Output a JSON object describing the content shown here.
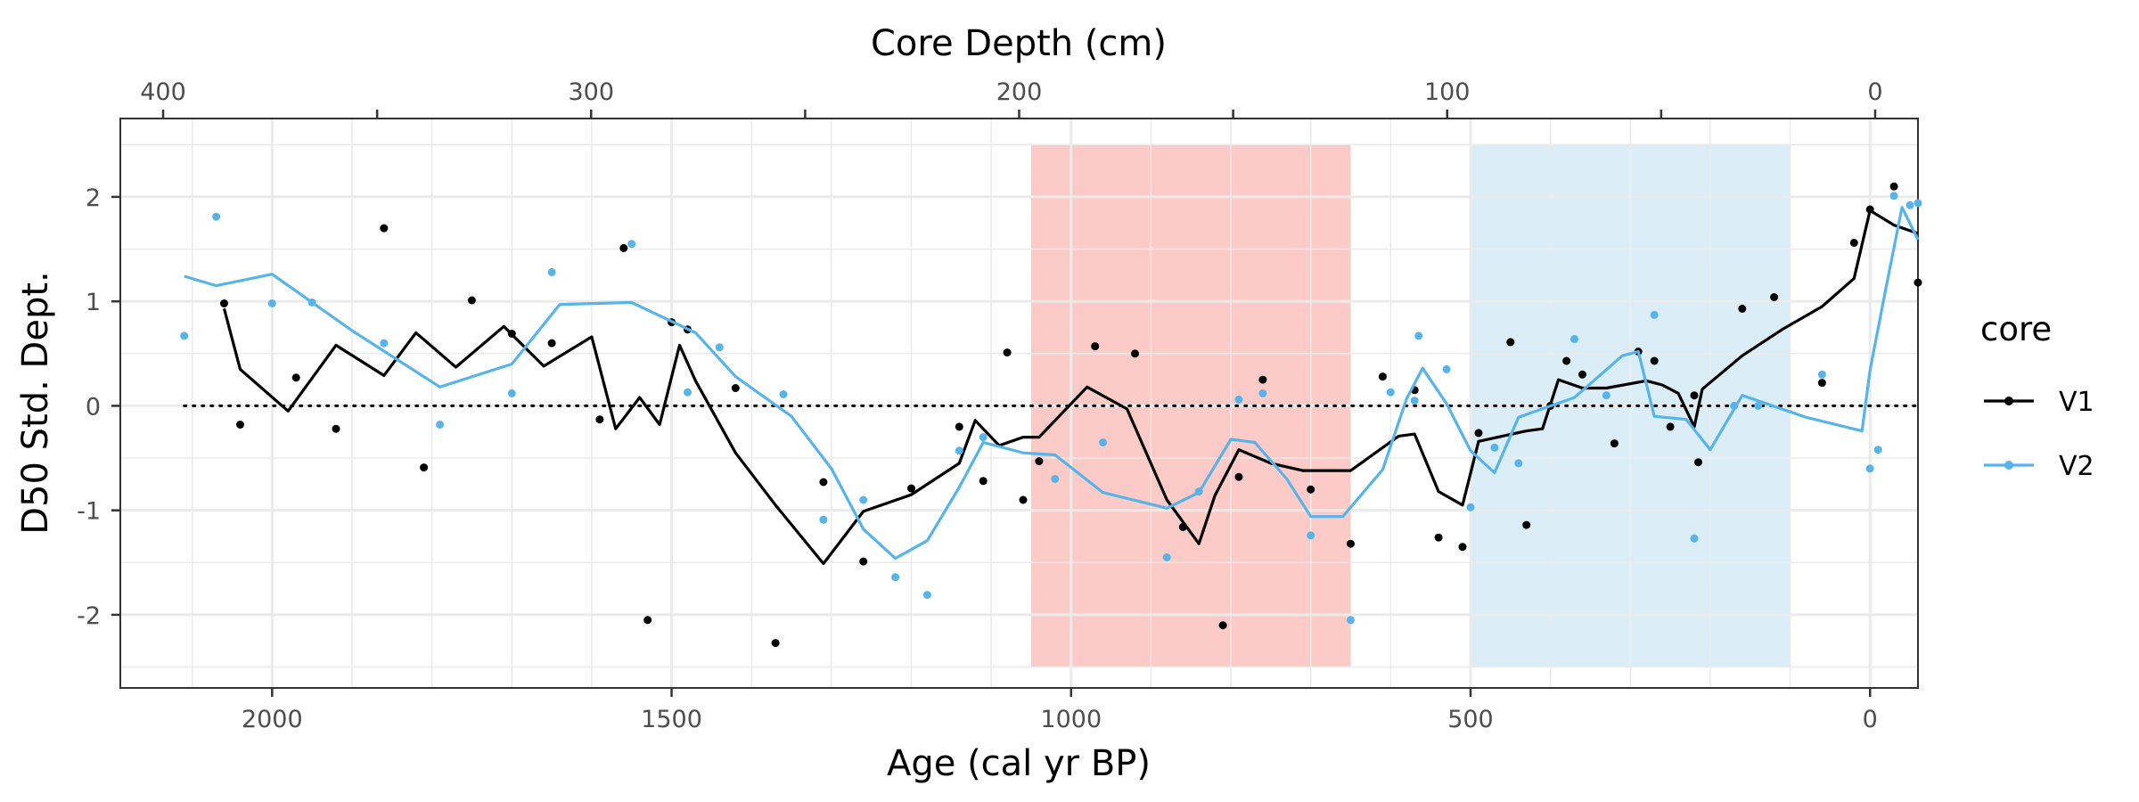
{
  "chart_data": {
    "type": "scatter",
    "xlabel": "Age (cal yr BP)",
    "ylabel": "D50 Std. Dept.",
    "secondary_xlabel": "Core Depth (cm)",
    "x_reversed": true,
    "xlim": [
      2190,
      -60
    ],
    "ylim": [
      -2.7,
      2.75
    ],
    "x_ticks": [
      2000,
      1500,
      1000,
      500,
      0
    ],
    "x_tick_labels": [
      "2000",
      "1500",
      "1000",
      "500",
      "0"
    ],
    "y_ticks": [
      -2,
      -1,
      0,
      1,
      2
    ],
    "y_tick_labels": [
      "-2",
      "-1",
      "0",
      "1",
      "2"
    ],
    "depth_ticks": [
      400,
      300,
      200,
      100,
      0
    ],
    "depth_tick_labels": [
      "400",
      "300",
      "200",
      "100",
      "0"
    ],
    "depth_xlim": [
      410,
      -10
    ],
    "grid": true,
    "reference_line": {
      "y": 0,
      "style": "dotted",
      "x_from": 2110,
      "x_to": -60
    },
    "shaded_regions": [
      {
        "x_from": 1050,
        "x_to": 650,
        "y_from": -2.5,
        "y_to": 2.5,
        "color": "#f8766d",
        "opacity": 0.38
      },
      {
        "x_from": 500,
        "x_to": 100,
        "y_from": -2.5,
        "y_to": 2.5,
        "color": "#a6d2e8",
        "opacity": 0.4
      }
    ],
    "legend": {
      "title": "core",
      "position": "right"
    },
    "series": [
      {
        "name": "V1",
        "color": "#000000",
        "points": [
          [
            2060,
            0.98
          ],
          [
            2040,
            -0.18
          ],
          [
            1970,
            0.27
          ],
          [
            1920,
            -0.22
          ],
          [
            1860,
            1.7
          ],
          [
            1810,
            -0.59
          ],
          [
            1750,
            1.01
          ],
          [
            1700,
            0.69
          ],
          [
            1650,
            0.6
          ],
          [
            1590,
            -0.13
          ],
          [
            1560,
            1.51
          ],
          [
            1530,
            -2.05
          ],
          [
            1500,
            0.8
          ],
          [
            1480,
            0.73
          ],
          [
            1420,
            0.17
          ],
          [
            1370,
            -2.27
          ],
          [
            1310,
            -0.73
          ],
          [
            1260,
            -1.49
          ],
          [
            1200,
            -0.79
          ],
          [
            1140,
            -0.2
          ],
          [
            1110,
            -0.72
          ],
          [
            1080,
            0.51
          ],
          [
            1060,
            -0.9
          ],
          [
            1040,
            -0.53
          ],
          [
            970,
            0.57
          ],
          [
            920,
            0.5
          ],
          [
            860,
            -1.16
          ],
          [
            810,
            -2.1
          ],
          [
            790,
            -0.68
          ],
          [
            760,
            0.25
          ],
          [
            700,
            -0.8
          ],
          [
            650,
            -1.32
          ],
          [
            610,
            0.28
          ],
          [
            570,
            0.15
          ],
          [
            540,
            -1.26
          ],
          [
            510,
            -1.35
          ],
          [
            490,
            -0.26
          ],
          [
            450,
            0.61
          ],
          [
            430,
            -1.14
          ],
          [
            400,
            0.0
          ],
          [
            380,
            0.43
          ],
          [
            360,
            0.3
          ],
          [
            320,
            -0.36
          ],
          [
            290,
            0.52
          ],
          [
            270,
            0.43
          ],
          [
            250,
            -0.2
          ],
          [
            220,
            0.1
          ],
          [
            215,
            -0.54
          ],
          [
            160,
            0.93
          ],
          [
            120,
            1.04
          ],
          [
            60,
            0.22
          ],
          [
            20,
            1.56
          ],
          [
            0,
            1.88
          ],
          [
            -30,
            2.1
          ],
          [
            -60,
            1.18
          ]
        ],
        "line": [
          [
            2060,
            0.93
          ],
          [
            2040,
            0.35
          ],
          [
            1980,
            -0.05
          ],
          [
            1920,
            0.58
          ],
          [
            1860,
            0.29
          ],
          [
            1820,
            0.7
          ],
          [
            1770,
            0.37
          ],
          [
            1710,
            0.76
          ],
          [
            1660,
            0.38
          ],
          [
            1600,
            0.66
          ],
          [
            1570,
            -0.22
          ],
          [
            1540,
            0.08
          ],
          [
            1515,
            -0.18
          ],
          [
            1490,
            0.58
          ],
          [
            1470,
            0.24
          ],
          [
            1420,
            -0.45
          ],
          [
            1370,
            -0.95
          ],
          [
            1310,
            -1.51
          ],
          [
            1260,
            -1.01
          ],
          [
            1200,
            -0.85
          ],
          [
            1140,
            -0.55
          ],
          [
            1120,
            -0.14
          ],
          [
            1090,
            -0.38
          ],
          [
            1060,
            -0.3
          ],
          [
            1040,
            -0.3
          ],
          [
            980,
            0.18
          ],
          [
            930,
            -0.03
          ],
          [
            880,
            -0.9
          ],
          [
            840,
            -1.32
          ],
          [
            820,
            -0.86
          ],
          [
            790,
            -0.42
          ],
          [
            750,
            -0.55
          ],
          [
            710,
            -0.62
          ],
          [
            650,
            -0.62
          ],
          [
            590,
            -0.29
          ],
          [
            570,
            -0.27
          ],
          [
            540,
            -0.82
          ],
          [
            510,
            -0.95
          ],
          [
            490,
            -0.34
          ],
          [
            460,
            -0.29
          ],
          [
            430,
            -0.24
          ],
          [
            410,
            -0.22
          ],
          [
            390,
            0.25
          ],
          [
            360,
            0.17
          ],
          [
            330,
            0.17
          ],
          [
            280,
            0.24
          ],
          [
            260,
            0.2
          ],
          [
            240,
            0.12
          ],
          [
            220,
            -0.2
          ],
          [
            210,
            0.16
          ],
          [
            160,
            0.48
          ],
          [
            110,
            0.73
          ],
          [
            60,
            0.95
          ],
          [
            20,
            1.22
          ],
          [
            0,
            1.87
          ],
          [
            -30,
            1.73
          ],
          [
            -60,
            1.65
          ]
        ]
      },
      {
        "name": "V2",
        "color": "#56b4e9",
        "points": [
          [
            2110,
            0.67
          ],
          [
            2070,
            1.81
          ],
          [
            2000,
            0.98
          ],
          [
            1950,
            0.99
          ],
          [
            1860,
            0.6
          ],
          [
            1790,
            -0.18
          ],
          [
            1700,
            0.12
          ],
          [
            1650,
            1.28
          ],
          [
            1550,
            1.55
          ],
          [
            1480,
            0.13
          ],
          [
            1440,
            0.56
          ],
          [
            1360,
            0.11
          ],
          [
            1310,
            -1.09
          ],
          [
            1260,
            -0.9
          ],
          [
            1220,
            -1.64
          ],
          [
            1180,
            -1.81
          ],
          [
            1140,
            -0.43
          ],
          [
            1110,
            -0.3
          ],
          [
            1020,
            -0.7
          ],
          [
            960,
            -0.35
          ],
          [
            880,
            -1.45
          ],
          [
            840,
            -0.82
          ],
          [
            790,
            0.06
          ],
          [
            760,
            0.12
          ],
          [
            700,
            -1.24
          ],
          [
            650,
            -2.05
          ],
          [
            600,
            0.13
          ],
          [
            570,
            0.05
          ],
          [
            565,
            0.67
          ],
          [
            530,
            0.35
          ],
          [
            500,
            -0.97
          ],
          [
            470,
            -0.4
          ],
          [
            440,
            -0.55
          ],
          [
            370,
            0.64
          ],
          [
            330,
            0.1
          ],
          [
            270,
            0.87
          ],
          [
            220,
            -1.27
          ],
          [
            170,
            0.0
          ],
          [
            140,
            0.0
          ],
          [
            60,
            0.3
          ],
          [
            0,
            -0.6
          ],
          [
            -10,
            -0.42
          ],
          [
            -30,
            2.01
          ],
          [
            -50,
            1.92
          ],
          [
            -60,
            1.94
          ]
        ],
        "line": [
          [
            2110,
            1.24
          ],
          [
            2070,
            1.15
          ],
          [
            2000,
            1.26
          ],
          [
            1900,
            0.72
          ],
          [
            1790,
            0.18
          ],
          [
            1700,
            0.4
          ],
          [
            1640,
            0.97
          ],
          [
            1550,
            0.99
          ],
          [
            1470,
            0.7
          ],
          [
            1420,
            0.28
          ],
          [
            1350,
            -0.1
          ],
          [
            1300,
            -0.6
          ],
          [
            1260,
            -1.18
          ],
          [
            1220,
            -1.46
          ],
          [
            1180,
            -1.29
          ],
          [
            1140,
            -0.78
          ],
          [
            1110,
            -0.35
          ],
          [
            1060,
            -0.45
          ],
          [
            1020,
            -0.47
          ],
          [
            960,
            -0.83
          ],
          [
            880,
            -0.98
          ],
          [
            840,
            -0.83
          ],
          [
            800,
            -0.32
          ],
          [
            770,
            -0.35
          ],
          [
            730,
            -0.7
          ],
          [
            700,
            -1.06
          ],
          [
            660,
            -1.06
          ],
          [
            610,
            -0.61
          ],
          [
            580,
            0.07
          ],
          [
            560,
            0.36
          ],
          [
            530,
            0.02
          ],
          [
            500,
            -0.43
          ],
          [
            470,
            -0.64
          ],
          [
            440,
            -0.11
          ],
          [
            370,
            0.08
          ],
          [
            310,
            0.48
          ],
          [
            290,
            0.52
          ],
          [
            270,
            -0.1
          ],
          [
            230,
            -0.13
          ],
          [
            200,
            -0.42
          ],
          [
            160,
            0.1
          ],
          [
            80,
            -0.11
          ],
          [
            10,
            -0.24
          ],
          [
            0,
            0.34
          ],
          [
            -20,
            1.13
          ],
          [
            -40,
            1.9
          ],
          [
            -60,
            1.59
          ]
        ]
      }
    ]
  }
}
